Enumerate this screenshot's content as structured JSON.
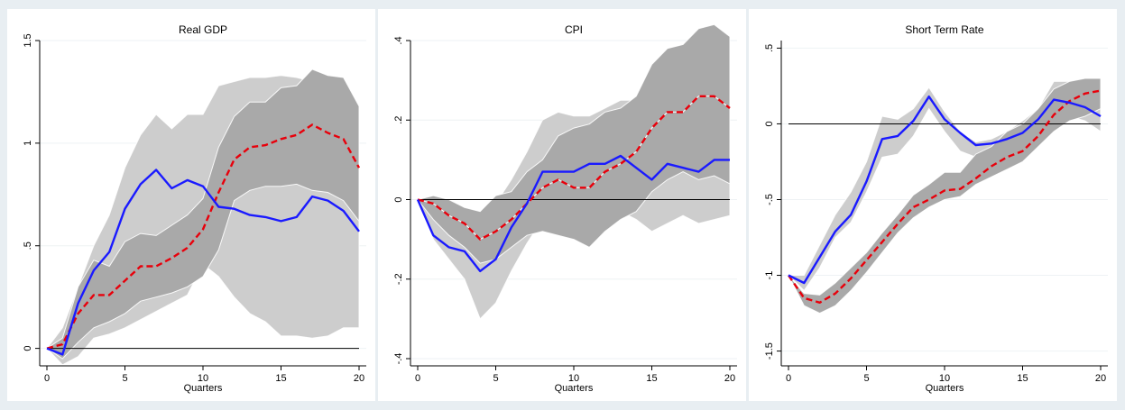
{
  "chart_data": [
    {
      "type": "line",
      "title": "Real GDP",
      "xlabel": "Quarters",
      "ylabel": "",
      "xlim": [
        0,
        20
      ],
      "ylim": [
        -0.05,
        1.5
      ],
      "xticks": [
        0,
        5,
        10,
        15,
        20
      ],
      "xtick_labels": [
        "0",
        "5",
        "10",
        "15",
        "20"
      ],
      "yticks": [
        0,
        0.5,
        1,
        1.5
      ],
      "ytick_labels": [
        "0",
        ".5",
        "1",
        "1.5"
      ],
      "grid": "horizontal",
      "zero_line": true,
      "x": [
        0,
        1,
        2,
        3,
        4,
        5,
        6,
        7,
        8,
        9,
        10,
        11,
        12,
        13,
        14,
        15,
        16,
        17,
        18,
        19,
        20
      ],
      "bands": [
        {
          "color": "#cdcdcd",
          "upper": [
            0,
            0.1,
            0.3,
            0.5,
            0.65,
            0.88,
            1.04,
            1.14,
            1.07,
            1.14,
            1.14,
            1.28,
            1.3,
            1.32,
            1.32,
            1.33,
            1.32,
            1.3,
            1.28,
            1.25,
            1.18
          ],
          "lower": [
            0,
            -0.08,
            -0.04,
            0.05,
            0.07,
            0.1,
            0.14,
            0.18,
            0.22,
            0.26,
            0.41,
            0.35,
            0.25,
            0.17,
            0.13,
            0.06,
            0.06,
            0.05,
            0.06,
            0.1,
            0.1
          ]
        },
        {
          "color": "#a9a9a9",
          "upper": [
            0,
            0.05,
            0.3,
            0.43,
            0.4,
            0.52,
            0.56,
            0.55,
            0.6,
            0.65,
            0.73,
            0.98,
            1.13,
            1.2,
            1.2,
            1.27,
            1.28,
            1.36,
            1.33,
            1.32,
            1.18
          ],
          "lower": [
            0,
            -0.05,
            0.03,
            0.1,
            0.13,
            0.17,
            0.23,
            0.25,
            0.27,
            0.3,
            0.35,
            0.48,
            0.72,
            0.77,
            0.79,
            0.79,
            0.8,
            0.77,
            0.76,
            0.72,
            0.62
          ]
        }
      ],
      "series": [
        {
          "color": "#e8000b",
          "dash": true,
          "values": [
            0,
            0.02,
            0.17,
            0.26,
            0.26,
            0.33,
            0.4,
            0.4,
            0.44,
            0.49,
            0.58,
            0.76,
            0.92,
            0.98,
            0.99,
            1.02,
            1.04,
            1.09,
            1.05,
            1.02,
            0.88
          ]
        },
        {
          "color": "#1a1aff",
          "dash": false,
          "values": [
            0,
            -0.03,
            0.22,
            0.38,
            0.47,
            0.68,
            0.8,
            0.87,
            0.78,
            0.82,
            0.79,
            0.69,
            0.68,
            0.65,
            0.64,
            0.62,
            0.64,
            0.74,
            0.72,
            0.67,
            0.57
          ]
        }
      ]
    },
    {
      "type": "line",
      "title": "CPI",
      "xlabel": "Quarters",
      "ylabel": "",
      "xlim": [
        0,
        20
      ],
      "ylim": [
        -0.4,
        0.4
      ],
      "xticks": [
        0,
        5,
        10,
        15,
        20
      ],
      "xtick_labels": [
        "0",
        "5",
        "10",
        "15",
        "20"
      ],
      "yticks": [
        -0.4,
        -0.2,
        0,
        0.2,
        0.4
      ],
      "ytick_labels": [
        "-.4",
        "-.2",
        "0",
        ".2",
        ".4"
      ],
      "grid": "horizontal",
      "zero_line": true,
      "x": [
        0,
        1,
        2,
        3,
        4,
        5,
        6,
        7,
        8,
        9,
        10,
        11,
        12,
        13,
        14,
        15,
        16,
        17,
        18,
        19,
        20
      ],
      "bands": [
        {
          "color": "#cdcdcd",
          "upper": [
            0,
            0,
            -0.03,
            -0.05,
            -0.04,
            -0.01,
            0.05,
            0.12,
            0.2,
            0.22,
            0.21,
            0.21,
            0.23,
            0.25,
            0.25,
            0.27,
            0.3,
            0.32,
            0.31,
            0.3,
            0.33
          ],
          "lower": [
            0,
            -0.1,
            -0.15,
            -0.2,
            -0.3,
            -0.26,
            -0.18,
            -0.11,
            -0.05,
            -0.06,
            -0.04,
            -0.05,
            -0.04,
            -0.03,
            -0.05,
            -0.08,
            -0.06,
            -0.04,
            -0.06,
            -0.05,
            -0.04
          ]
        },
        {
          "color": "#a9a9a9",
          "upper": [
            0,
            0.01,
            0,
            -0.02,
            -0.03,
            0.01,
            0.02,
            0.07,
            0.1,
            0.16,
            0.18,
            0.19,
            0.22,
            0.23,
            0.26,
            0.34,
            0.38,
            0.39,
            0.43,
            0.44,
            0.41
          ]
        },
        {
          "color": "#a9a9a9",
          "lower": [
            0,
            -0.05,
            -0.09,
            -0.12,
            -0.16,
            -0.15,
            -0.12,
            -0.09,
            -0.08,
            -0.09,
            -0.1,
            -0.12,
            -0.08,
            -0.05,
            -0.03,
            0.02,
            0.05,
            0.07,
            0.05,
            0.06,
            0.04
          ]
        }
      ],
      "series": [
        {
          "color": "#e8000b",
          "dash": true,
          "values": [
            0,
            -0.01,
            -0.04,
            -0.06,
            -0.1,
            -0.08,
            -0.05,
            -0.01,
            0.03,
            0.05,
            0.03,
            0.03,
            0.07,
            0.09,
            0.12,
            0.18,
            0.22,
            0.22,
            0.26,
            0.26,
            0.23
          ]
        },
        {
          "color": "#1a1aff",
          "dash": false,
          "values": [
            0,
            -0.09,
            -0.12,
            -0.13,
            -0.18,
            -0.15,
            -0.07,
            -0.01,
            0.07,
            0.07,
            0.07,
            0.09,
            0.09,
            0.11,
            0.08,
            0.05,
            0.09,
            0.08,
            0.07,
            0.1,
            0.1
          ]
        }
      ]
    },
    {
      "type": "line",
      "title": "Short Term Rate",
      "xlabel": "Quarters",
      "ylabel": "",
      "xlim": [
        0,
        20
      ],
      "ylim": [
        -1.55,
        0.55
      ],
      "xticks": [
        0,
        5,
        10,
        15,
        20
      ],
      "xtick_labels": [
        "0",
        "5",
        "10",
        "15",
        "20"
      ],
      "yticks": [
        -1.5,
        -1,
        -0.5,
        0,
        0.5
      ],
      "ytick_labels": [
        "-1.5",
        "-1",
        "-.5",
        "0",
        ".5"
      ],
      "grid": "horizontal",
      "zero_line": true,
      "x": [
        0,
        1,
        2,
        3,
        4,
        5,
        6,
        7,
        8,
        9,
        10,
        11,
        12,
        13,
        14,
        15,
        16,
        17,
        18,
        19,
        20
      ],
      "bands": [
        {
          "color": "#cdcdcd",
          "upper": [
            -1,
            -1,
            -0.8,
            -0.6,
            -0.45,
            -0.25,
            0.05,
            0.03,
            0.1,
            0.24,
            0.08,
            -0.05,
            -0.12,
            -0.1,
            -0.05,
            0.02,
            0.1,
            0.28,
            0.28,
            0.25,
            0.2
          ],
          "lower": [
            -1,
            -1.1,
            -0.95,
            -0.75,
            -0.65,
            -0.45,
            -0.22,
            -0.2,
            -0.08,
            0.1,
            -0.05,
            -0.18,
            -0.22,
            -0.18,
            -0.15,
            -0.12,
            -0.05,
            0.05,
            0.05,
            0.02,
            -0.05
          ]
        },
        {
          "color": "#a9a9a9",
          "upper": [
            -1,
            -1.12,
            -1.13,
            -1.05,
            -0.95,
            -0.85,
            -0.72,
            -0.6,
            -0.47,
            -0.4,
            -0.32,
            -0.32,
            -0.2,
            -0.15,
            -0.05,
            0,
            0.1,
            0.23,
            0.28,
            0.3,
            0.3
          ],
          "lower": [
            -1,
            -1.2,
            -1.25,
            -1.2,
            -1.1,
            -0.98,
            -0.85,
            -0.72,
            -0.62,
            -0.55,
            -0.5,
            -0.48,
            -0.4,
            -0.35,
            -0.3,
            -0.25,
            -0.15,
            -0.05,
            0.02,
            0.05,
            0.1
          ]
        }
      ],
      "series": [
        {
          "color": "#e8000b",
          "dash": true,
          "values": [
            -1,
            -1.15,
            -1.18,
            -1.12,
            -1.02,
            -0.9,
            -0.78,
            -0.66,
            -0.55,
            -0.5,
            -0.44,
            -0.43,
            -0.36,
            -0.28,
            -0.22,
            -0.18,
            -0.08,
            0.06,
            0.15,
            0.2,
            0.22
          ]
        },
        {
          "color": "#1a1aff",
          "dash": false,
          "values": [
            -1,
            -1.05,
            -0.88,
            -0.71,
            -0.6,
            -0.38,
            -0.1,
            -0.08,
            0.02,
            0.18,
            0.03,
            -0.06,
            -0.14,
            -0.13,
            -0.1,
            -0.06,
            0.03,
            0.16,
            0.14,
            0.11,
            0.05
          ]
        }
      ]
    }
  ]
}
